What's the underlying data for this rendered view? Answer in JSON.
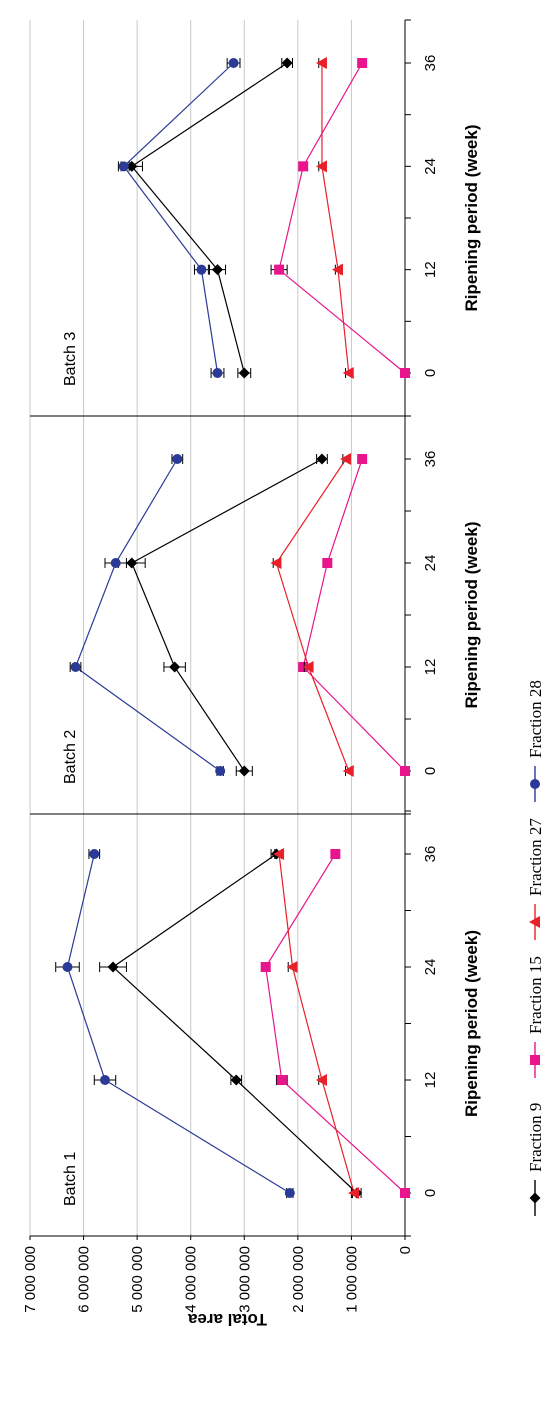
{
  "chart_data": {
    "type": "line",
    "ylabel": "Total area",
    "ylim": [
      0,
      7000000
    ],
    "yticks": [
      0,
      1000000,
      2000000,
      3000000,
      4000000,
      5000000,
      6000000,
      7000000
    ],
    "ytick_labels": [
      "0",
      "1 000 000",
      "2 000 000",
      "3 000 000",
      "4 000 000",
      "5 000 000",
      "6 000 000",
      "7 000 000"
    ],
    "x_categories": [
      "0",
      "12",
      "24",
      "36"
    ],
    "grid": true,
    "legend_position": "bottom",
    "series_styles": [
      {
        "name": "Fraction 9",
        "color": "#000000",
        "marker": "diamond"
      },
      {
        "name": "Fraction 15",
        "color": "#e8158c",
        "marker": "square"
      },
      {
        "name": "Fraction 27",
        "color": "#e8202a",
        "marker": "triangle"
      },
      {
        "name": "Fraction 28",
        "color": "#2b3a96",
        "marker": "circle"
      }
    ],
    "panels": [
      {
        "title": "Batch 1",
        "xlabel": "Ripening period (week)",
        "series": [
          {
            "name": "Fraction 9",
            "values": [
              900000,
              3150000,
              5450000,
              2400000
            ],
            "errors": [
              80000,
              100000,
              250000,
              100000
            ]
          },
          {
            "name": "Fraction 15",
            "values": [
              0,
              2300000,
              2600000,
              1300000
            ],
            "errors": [
              0,
              100000,
              80000,
              50000
            ]
          },
          {
            "name": "Fraction 27",
            "values": [
              950000,
              1550000,
              2100000,
              2350000
            ],
            "errors": [
              50000,
              60000,
              80000,
              80000
            ]
          },
          {
            "name": "Fraction 28",
            "values": [
              2150000,
              5600000,
              6300000,
              5800000
            ],
            "errors": [
              60000,
              200000,
              220000,
              100000
            ]
          }
        ]
      },
      {
        "title": "Batch 2",
        "xlabel": "Ripening period (week)",
        "series": [
          {
            "name": "Fraction 9",
            "values": [
              3000000,
              4300000,
              5100000,
              1550000
            ],
            "errors": [
              150000,
              200000,
              250000,
              100000
            ]
          },
          {
            "name": "Fraction 15",
            "values": [
              0,
              1900000,
              1450000,
              800000
            ],
            "errors": [
              0,
              80000,
              60000,
              60000
            ]
          },
          {
            "name": "Fraction 27",
            "values": [
              1050000,
              1800000,
              2400000,
              1100000
            ],
            "errors": [
              60000,
              80000,
              60000,
              60000
            ]
          },
          {
            "name": "Fraction 28",
            "values": [
              3450000,
              6150000,
              5400000,
              4250000
            ],
            "errors": [
              60000,
              100000,
              200000,
              100000
            ]
          }
        ]
      },
      {
        "title": "Batch 3",
        "xlabel": "Ripening period (week)",
        "series": [
          {
            "name": "Fraction 9",
            "values": [
              3000000,
              3500000,
              5100000,
              2200000
            ],
            "errors": [
              120000,
              150000,
              200000,
              100000
            ]
          },
          {
            "name": "Fraction 15",
            "values": [
              0,
              2350000,
              1900000,
              800000
            ],
            "errors": [
              0,
              150000,
              80000,
              60000
            ]
          },
          {
            "name": "Fraction 27",
            "values": [
              1050000,
              1250000,
              1550000,
              1550000
            ],
            "errors": [
              60000,
              50000,
              60000,
              60000
            ]
          },
          {
            "name": "Fraction 28",
            "values": [
              3500000,
              3800000,
              5250000,
              3200000
            ],
            "errors": [
              120000,
              130000,
              100000,
              120000
            ]
          }
        ]
      }
    ]
  }
}
